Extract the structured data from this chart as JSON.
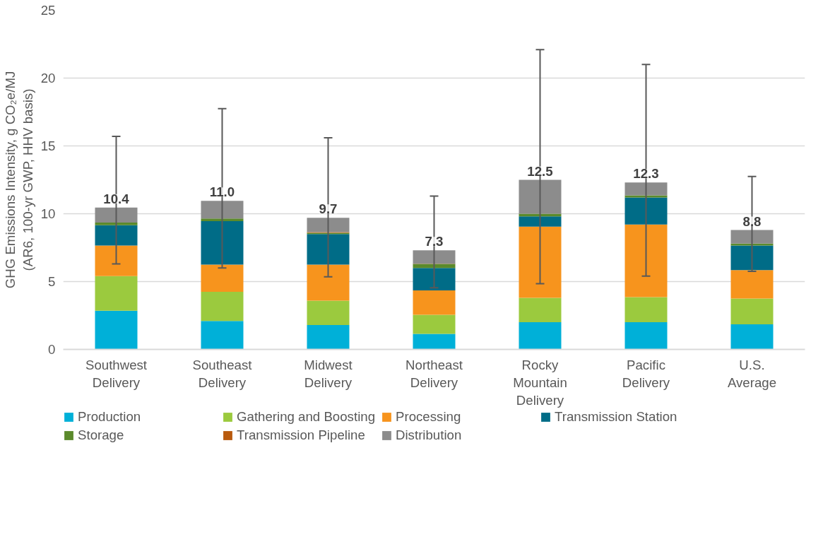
{
  "chart_data": {
    "type": "bar",
    "stacked": true,
    "ylabel": "GHG Emissions Intensity, g CO₂e/MJ\n(AR6, 100-yr GWP, HHV basis)",
    "categories": [
      "Southwest Delivery",
      "Southeast Delivery",
      "Midwest Delivery",
      "Northeast Delivery",
      "Rocky Mountain Delivery",
      "Pacific Delivery",
      "U.S. Average"
    ],
    "series": [
      {
        "name": "Production",
        "color": "#00b0d8",
        "values": [
          2.85,
          2.1,
          1.8,
          1.15,
          2.0,
          2.0,
          1.85
        ]
      },
      {
        "name": "Gathering and Boosting",
        "color": "#9bca3e",
        "values": [
          2.55,
          2.15,
          1.8,
          1.4,
          1.8,
          1.85,
          1.9
        ]
      },
      {
        "name": "Processing",
        "color": "#f7941d",
        "values": [
          2.25,
          2.0,
          2.65,
          1.8,
          5.25,
          5.35,
          2.1
        ]
      },
      {
        "name": "Transmission Station",
        "color": "#006c87",
        "values": [
          1.5,
          3.2,
          2.25,
          1.65,
          0.75,
          2.0,
          1.8
        ]
      },
      {
        "name": "Storage",
        "color": "#5b8a2b",
        "values": [
          0.2,
          0.2,
          0.1,
          0.3,
          0.2,
          0.15,
          0.15
        ]
      },
      {
        "name": "Transmission Pipeline",
        "color": "#b85a0d",
        "values": [
          0,
          0,
          0.05,
          0.02,
          0,
          0,
          0
        ]
      },
      {
        "name": "Distribution",
        "color": "#8c8c8c",
        "values": [
          1.1,
          1.3,
          1.05,
          0.98,
          2.5,
          0.95,
          1.0
        ],
        "errors": [
          [
            6.3,
            15.7
          ],
          [
            6.0,
            17.75
          ],
          [
            5.35,
            15.6
          ],
          [
            4.55,
            11.3
          ],
          [
            4.85,
            22.1
          ],
          [
            5.4,
            21.0
          ],
          [
            5.75,
            12.75
          ]
        ]
      }
    ],
    "totals": [
      "10.4",
      "11.0",
      "9.7",
      "7.3",
      "12.5",
      "12.3",
      "8.8"
    ],
    "ylim": [
      0,
      25
    ],
    "yticks": [
      0,
      5,
      10,
      15,
      20,
      25
    ],
    "grid": "y",
    "legend": "bottom"
  }
}
